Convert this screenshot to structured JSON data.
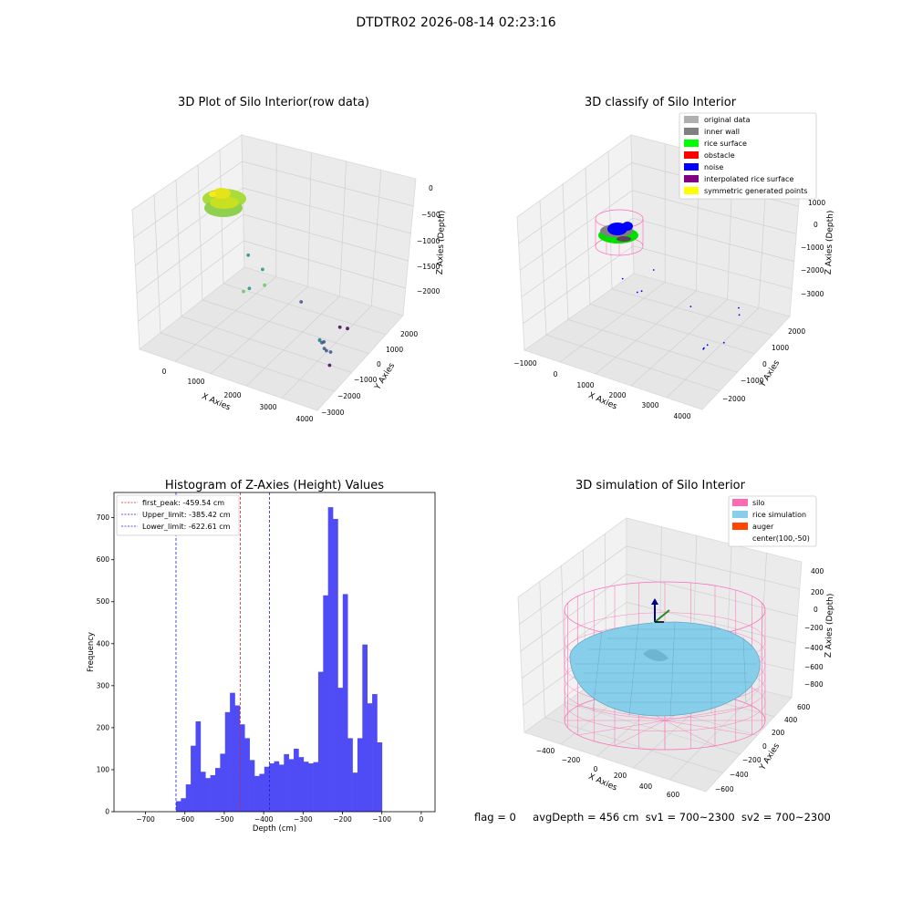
{
  "figure": {
    "suptitle": "DTDTR02 2026-08-14 02:23:16",
    "footer": {
      "flag": "flag = 0",
      "avg_depth": "avgDepth = 456 cm",
      "sv1": "sv1 = 700~2300",
      "sv2": "sv2 = 700~2300"
    }
  },
  "colors": {
    "histogram": "#4f4cf5",
    "peak_line": "#d62728",
    "limit_line": "#1f1fd6",
    "silo": "#ff69b4",
    "rice": "#87ceeb",
    "auger": "#ff4500",
    "classify": {
      "original": "#b0b0b0",
      "inner_wall": "#808080",
      "rice_surface": "#00ff00",
      "obstacle": "#ff0000",
      "noise": "#0000ff",
      "interpolated": "#800080",
      "symmetric": "#ffff00"
    }
  },
  "chart_data": [
    {
      "type": "scatter",
      "title": "3D Plot of Silo Interior(row data)",
      "xlabel": "X Axies",
      "ylabel": "Y Axies",
      "zlabel": "Z Axies (Depth)",
      "x_ticks": [
        "0",
        "1000",
        "2000",
        "3000",
        "4000"
      ],
      "y_ticks": [
        "2000",
        "1000",
        "0",
        "−1000",
        "−2000",
        "−3000"
      ],
      "z_ticks": [
        "0",
        "−500",
        "−1000",
        "−1500",
        "−2000"
      ],
      "xlim": [
        -500,
        4000
      ],
      "ylim": [
        -3000,
        2500
      ],
      "zlim": [
        -2400,
        0
      ],
      "points": [
        {
          "x": 3200,
          "y": 200,
          "z": -2400
        },
        {
          "x": 2800,
          "y": -1200,
          "z": -2200
        },
        {
          "x": 3300,
          "y": -600,
          "z": -1950
        },
        {
          "x": 3600,
          "y": 900,
          "z": -1900
        },
        {
          "x": 3700,
          "y": 1300,
          "z": -1750
        },
        {
          "x": 3750,
          "y": 1500,
          "z": -1650
        },
        {
          "x": 3800,
          "y": 1600,
          "z": -1500
        },
        {
          "x": 3850,
          "y": 1800,
          "z": -1450
        },
        {
          "x": 3900,
          "y": 2000,
          "z": -1350
        },
        {
          "x": 3950,
          "y": 2100,
          "z": -1300
        },
        {
          "x": 2500,
          "y": 100,
          "z": -1500
        },
        {
          "x": 1500,
          "y": 0,
          "z": -1200
        },
        {
          "x": 1900,
          "y": 1500,
          "z": -1050
        },
        {
          "x": 2000,
          "y": 2000,
          "z": -950
        },
        {
          "x": 2300,
          "y": 1500,
          "z": -900
        },
        {
          "x": 1200,
          "y": 100,
          "z": -1000
        }
      ]
    },
    {
      "type": "scatter",
      "title": "3D classify of Silo Interior",
      "xlabel": "X Axies",
      "ylabel": "Y Axies",
      "zlabel": "Z Axies (Depth)",
      "x_ticks": [
        "−1000",
        "0",
        "1000",
        "2000",
        "3000",
        "4000"
      ],
      "y_ticks": [
        "2000",
        "1000",
        "0",
        "−1000",
        "−2000"
      ],
      "z_ticks": [
        "1000",
        "0",
        "−1000",
        "−2000",
        "−3000"
      ],
      "xlim": [
        -1000,
        4000
      ],
      "ylim": [
        -2500,
        2500
      ],
      "zlim": [
        -3500,
        1000
      ],
      "legend": [
        {
          "label": "original data",
          "color_key": "original"
        },
        {
          "label": "inner wall",
          "color_key": "inner_wall"
        },
        {
          "label": "rice surface",
          "color_key": "rice_surface"
        },
        {
          "label": "obstacle",
          "color_key": "obstacle"
        },
        {
          "label": "noise",
          "color_key": "noise"
        },
        {
          "label": "interpolated rice surface",
          "color_key": "interpolated"
        },
        {
          "label": "symmetric generated points",
          "color_key": "symmetric"
        }
      ],
      "noise_points": [
        {
          "x": 3100,
          "y": 0,
          "z": -2900
        },
        {
          "x": 2600,
          "y": -1500,
          "z": -2700
        },
        {
          "x": 2800,
          "y": -1200,
          "z": -2700
        },
        {
          "x": 3600,
          "y": 1500,
          "z": -2000
        },
        {
          "x": 3800,
          "y": 2000,
          "z": -1800
        },
        {
          "x": 3950,
          "y": 2200,
          "z": -1600
        },
        {
          "x": 2400,
          "y": 300,
          "z": -1800
        },
        {
          "x": 1200,
          "y": 0,
          "z": -1200
        },
        {
          "x": 1800,
          "y": 1500,
          "z": -900
        },
        {
          "x": 2000,
          "y": 2000,
          "z": -600
        },
        {
          "x": 1600,
          "y": 2000,
          "z": -300
        }
      ]
    },
    {
      "type": "bar",
      "title": "Histogram of Z-Axies (Height) Values",
      "xlabel": "Depth (cm)",
      "ylabel": "Frequency",
      "xlim": [
        -780,
        35
      ],
      "ylim": [
        0,
        760
      ],
      "x_ticks": [
        -700,
        -600,
        -500,
        -400,
        -300,
        -200,
        -100,
        0
      ],
      "y_ticks": [
        0,
        100,
        200,
        300,
        400,
        500,
        600,
        700
      ],
      "bin_start": -622.6,
      "bin_width": 12.45,
      "values": [
        25,
        32,
        65,
        157,
        215,
        95,
        80,
        87,
        104,
        138,
        237,
        283,
        253,
        208,
        175,
        123,
        85,
        90,
        107,
        115,
        120,
        112,
        137,
        125,
        150,
        130,
        119,
        115,
        118,
        333,
        515,
        725,
        697,
        295,
        518,
        175,
        93,
        175,
        398,
        258,
        280,
        165
      ],
      "lines": [
        {
          "label": "first_peak: -459.54 cm",
          "x": -459.54,
          "color_key": "peak_line"
        },
        {
          "label": "Upper_limit: -385.42 cm",
          "x": -385.42,
          "color_key": "limit_line"
        },
        {
          "label": "Lower_limit: -622.61 cm",
          "x": -622.61,
          "color_key": "limit_line"
        }
      ]
    },
    {
      "type": "area",
      "title": "3D simulation of Silo Interior",
      "xlabel": "X Axies",
      "ylabel": "Y Axies",
      "zlabel": "Z Axies (Depth)",
      "x_ticks": [
        "−400",
        "−200",
        "0",
        "200",
        "400",
        "600"
      ],
      "y_ticks": [
        "600",
        "400",
        "200",
        "0",
        "−200",
        "−400",
        "−600"
      ],
      "z_ticks": [
        "400",
        "200",
        "0",
        "−200",
        "−400",
        "−600",
        "−800"
      ],
      "legend": [
        {
          "label": "silo",
          "color_key": "silo",
          "marker": "patch"
        },
        {
          "label": "rice simulation",
          "color_key": "rice",
          "marker": "patch"
        },
        {
          "label": "auger",
          "color_key": "auger",
          "marker": "patch"
        },
        {
          "label": "center(100,-50)",
          "color_key": "",
          "marker": "none"
        }
      ]
    }
  ]
}
